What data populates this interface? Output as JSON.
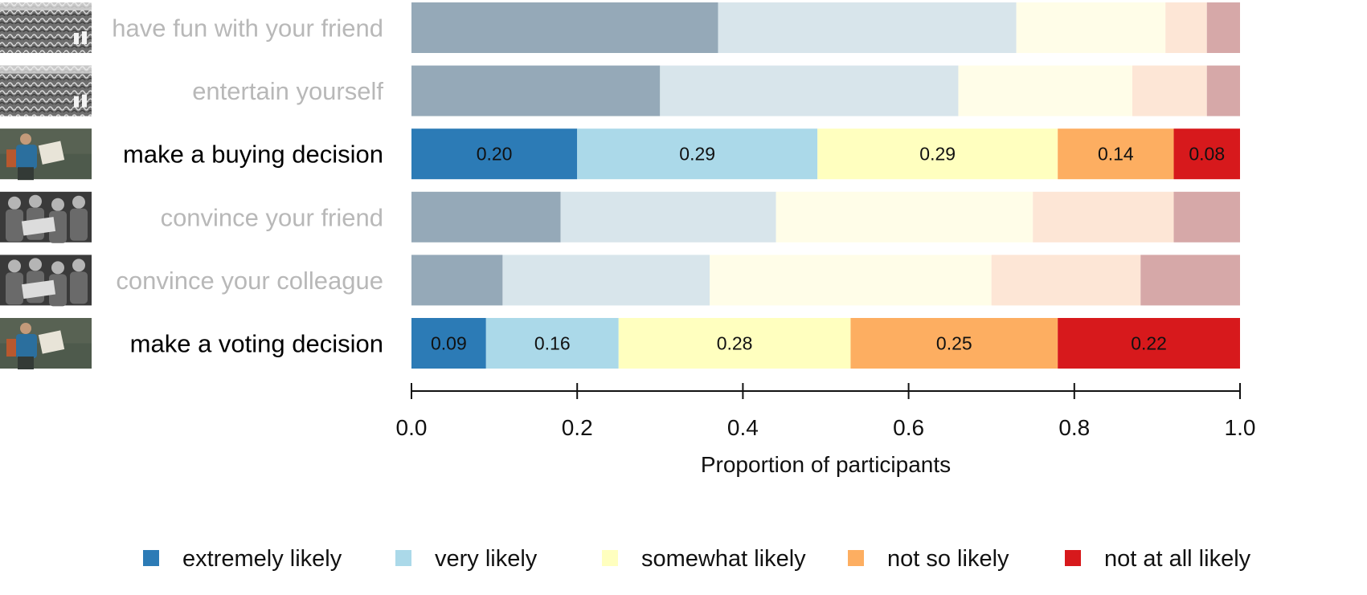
{
  "chart_data": {
    "type": "bar",
    "orientation": "horizontal",
    "stacked": true,
    "normalized": true,
    "xlabel": "Proportion of participants",
    "xlim": [
      0,
      1
    ],
    "xticks": [
      "0.0",
      "0.2",
      "0.4",
      "0.6",
      "0.8",
      "1.0"
    ],
    "legend_position": "bottom",
    "categories": [
      "have fun with your friend",
      "entertain yourself",
      "make a buying decision",
      "convince your friend",
      "convince your colleague",
      "make a voting decision"
    ],
    "thumbnails": [
      "maze",
      "maze",
      "hiker-with-map",
      "group-with-map",
      "group-with-map",
      "hiker-with-map"
    ],
    "highlighted": [
      false,
      false,
      true,
      false,
      false,
      true
    ],
    "series": [
      {
        "name": "extremely likely",
        "color": "#2c7bb6",
        "muted_color": "#95a9b8",
        "values": [
          0.37,
          0.3,
          0.2,
          0.18,
          0.11,
          0.09
        ]
      },
      {
        "name": "very likely",
        "color": "#abd9e9",
        "muted_color": "#d8e5eb",
        "values": [
          0.36,
          0.36,
          0.29,
          0.26,
          0.25,
          0.16
        ]
      },
      {
        "name": "somewhat likely",
        "color": "#ffffbf",
        "muted_color": "#fffde8",
        "values": [
          0.18,
          0.21,
          0.29,
          0.31,
          0.34,
          0.28
        ]
      },
      {
        "name": "not so likely",
        "color": "#fdae61",
        "muted_color": "#fde6d6",
        "values": [
          0.05,
          0.09,
          0.14,
          0.17,
          0.18,
          0.25
        ]
      },
      {
        "name": "not at all likely",
        "color": "#d7191c",
        "muted_color": "#d6a8a8",
        "values": [
          0.04,
          0.04,
          0.08,
          0.08,
          0.12,
          0.22
        ]
      }
    ],
    "data_labels": [
      null,
      null,
      [
        "0.20",
        "0.29",
        "0.29",
        "0.14",
        "0.08"
      ],
      null,
      null,
      [
        "0.09",
        "0.16",
        "0.28",
        "0.25",
        "0.22"
      ]
    ]
  }
}
